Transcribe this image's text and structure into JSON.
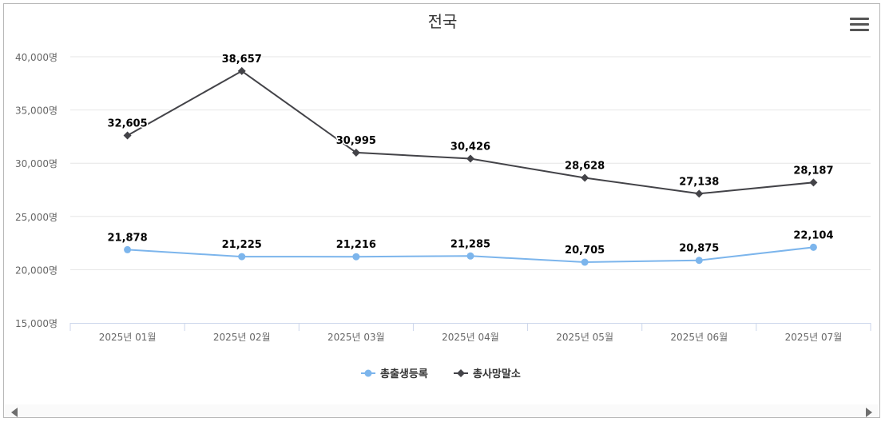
{
  "chart_data": {
    "type": "line",
    "title": "전국",
    "categories": [
      "2025년 01월",
      "2025년 02월",
      "2025년 03월",
      "2025년 04월",
      "2025년 05월",
      "2025년 06월",
      "2025년 07월"
    ],
    "series": [
      {
        "name": "총출생등록",
        "color": "#7cb5ec",
        "marker": "circle",
        "values": [
          21878,
          21225,
          21216,
          21285,
          20705,
          20875,
          22104
        ]
      },
      {
        "name": "총사망말소",
        "color": "#434348",
        "marker": "diamond",
        "values": [
          32605,
          38657,
          30995,
          30426,
          28628,
          27138,
          28187
        ]
      }
    ],
    "ylim": [
      15000,
      40000
    ],
    "yticks": [
      15000,
      20000,
      25000,
      30000,
      35000,
      40000
    ],
    "yunit": "명",
    "grid": true,
    "legend": "bottom-center",
    "xlabel": "",
    "ylabel": ""
  },
  "ui": {
    "menu_icon": "hamburger-menu-icon",
    "scroll_left_icon": "arrow-left-icon",
    "scroll_right_icon": "arrow-right-icon"
  }
}
